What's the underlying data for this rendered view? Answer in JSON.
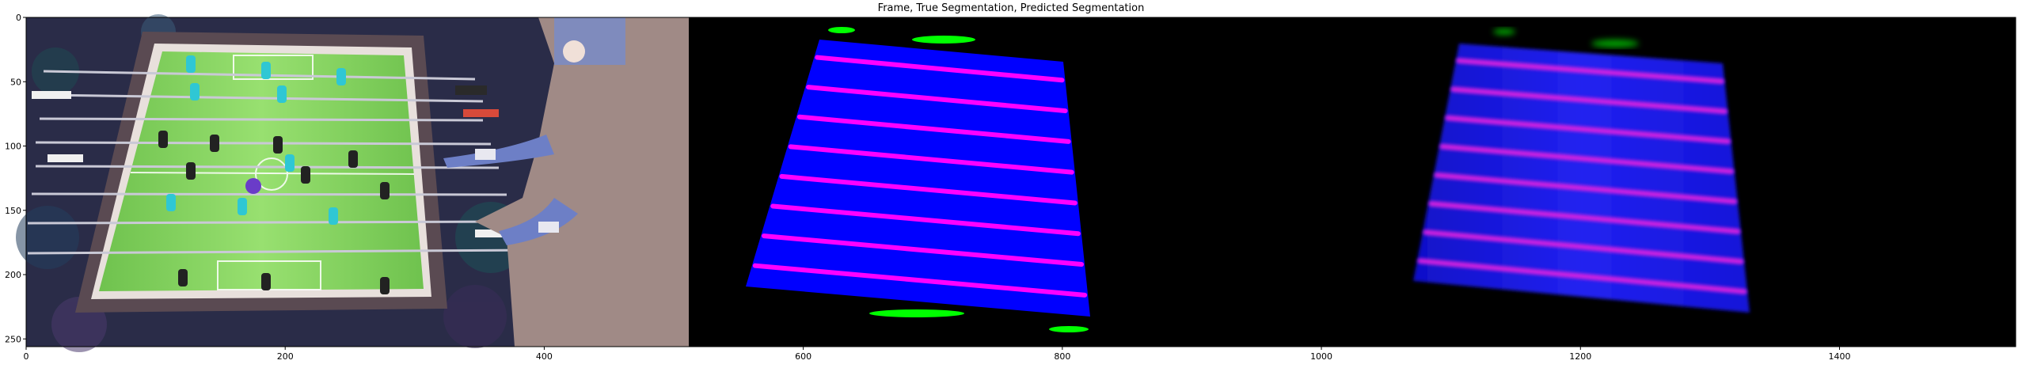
{
  "figure": {
    "title": "Frame, True Segmentation, Predicted Segmentation",
    "panels": [
      {
        "name": "frame",
        "description_hidden": true
      },
      {
        "name": "true-segmentation"
      },
      {
        "name": "predicted-segmentation"
      }
    ],
    "colors": {
      "background_black": "#000000",
      "table_blue": "#0000ff",
      "rod_magenta": "#ff00ff",
      "goal_green": "#00ff00",
      "field_green": "#7fcf5a"
    },
    "axes": {
      "x_ticks": [
        "0",
        "200",
        "400",
        "600",
        "800",
        "1000",
        "1200",
        "1400"
      ],
      "y_ticks": [
        "0",
        "50",
        "100",
        "150",
        "200",
        "250"
      ],
      "xlim": [
        0,
        1536
      ],
      "ylim": [
        0,
        256
      ]
    }
  }
}
